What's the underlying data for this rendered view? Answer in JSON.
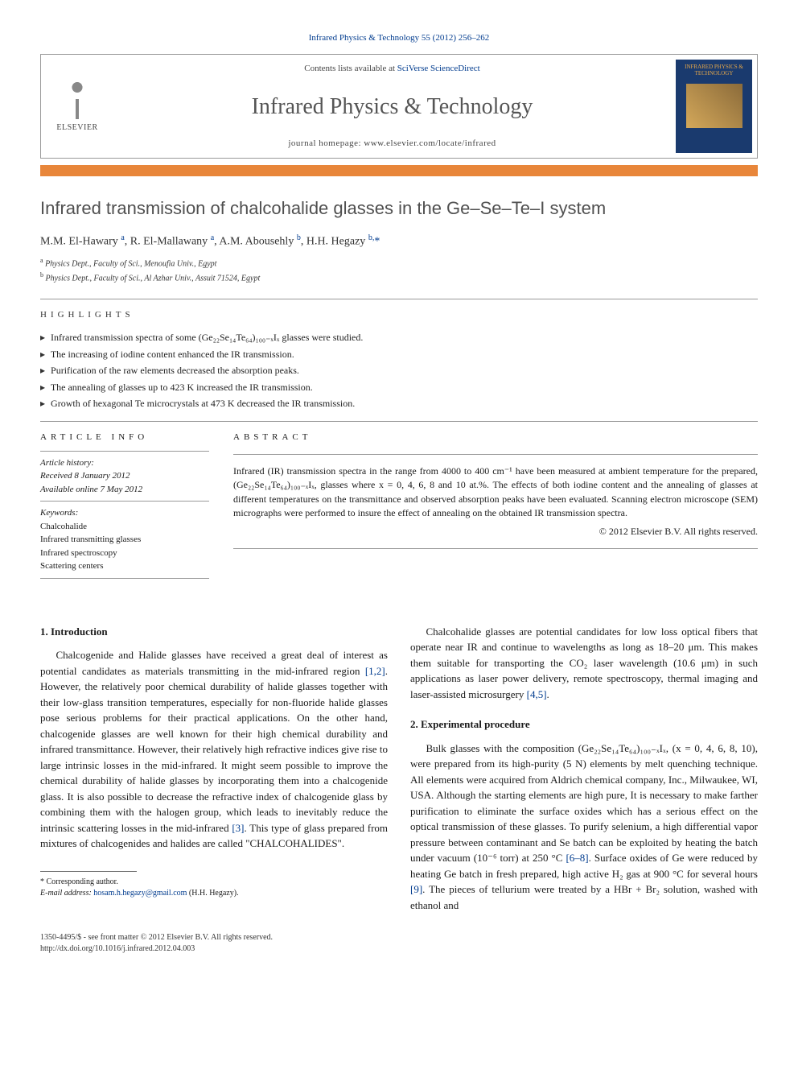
{
  "top_citation": "Infrared Physics & Technology 55 (2012) 256–262",
  "header": {
    "contents_prefix": "Contents lists available at ",
    "contents_link": "SciVerse ScienceDirect",
    "journal_name": "Infrared Physics & Technology",
    "homepage_prefix": "journal homepage: ",
    "homepage_url": "www.elsevier.com/locate/infrared",
    "publisher": "ELSEVIER",
    "cover_title": "INFRARED PHYSICS & TECHNOLOGY"
  },
  "colors": {
    "orange_bar": "#e8863a",
    "link_blue": "#003b8e",
    "title_gray": "#505050",
    "cover_bg": "#1a3a6e",
    "cover_text": "#e8a94a"
  },
  "title": "Infrared transmission of chalcohalide glasses in the Ge–Se–Te–I system",
  "authors_html": "M.M. El-Hawary <sup>a</sup>, R. El-Mallawany <sup>a</sup>, A.M. Abousehly <sup>b</sup>, H.H. Hegazy <sup>b,</sup><span class='ast'>*</span>",
  "affiliations": [
    "a Physics Dept., Faculty of Sci., Menoufia Univ., Egypt",
    "b Physics Dept., Faculty of Sci., Al Azhar Univ., Assuit 71524, Egypt"
  ],
  "highlights_label": "HIGHLIGHTS",
  "highlights": [
    "Infrared transmission spectra of some (Ge₂₂Se₁₄Te₆₄)₁₀₀₋ₓIₓ glasses were studied.",
    "The increasing of iodine content enhanced the IR transmission.",
    "Purification of the raw elements decreased the absorption peaks.",
    "The annealing of glasses up to 423 K increased the IR transmission.",
    "Growth of hexagonal Te microcrystals at 473 K decreased the IR transmission."
  ],
  "article_info": {
    "label": "ARTICLE INFO",
    "history_hdr": "Article history:",
    "received": "Received 8 January 2012",
    "online": "Available online 7 May 2012",
    "keywords_hdr": "Keywords:",
    "keywords": [
      "Chalcohalide",
      "Infrared transmitting glasses",
      "Infrared spectroscopy",
      "Scattering centers"
    ]
  },
  "abstract": {
    "label": "ABSTRACT",
    "text": "Infrared (IR) transmission spectra in the range from 4000 to 400 cm⁻¹ have been measured at ambient temperature for the prepared, (Ge₂₂Se₁₄Te₆₄)₁₀₀₋ₓIₓ, glasses where x = 0, 4, 6, 8 and 10 at.%. The effects of both iodine content and the annealing of glasses at different temperatures on the transmittance and observed absorption peaks have been evaluated. Scanning electron microscope (SEM) micrographs were performed to insure the effect of annealing on the obtained IR transmission spectra.",
    "copyright": "© 2012 Elsevier B.V. All rights reserved."
  },
  "body": {
    "intro_heading": "1. Introduction",
    "intro_p1": "Chalcogenide and Halide glasses have received a great deal of interest as potential candidates as materials transmitting in the mid-infrared region [1,2]. However, the relatively poor chemical durability of halide glasses together with their low-glass transition temperatures, especially for non-fluoride halide glasses pose serious problems for their practical applications. On the other hand, chalcogenide glasses are well known for their high chemical durability and infrared transmittance. However, their relatively high refractive indices give rise to large intrinsic losses in the mid-infrared. It might seem possible to improve the chemical durability of halide glasses by incorporating them into a chalcogenide glass. It is also possible to decrease the refractive index of chalcogenide glass by combining them with the halogen group, which leads to inevitably reduce the intrinsic scattering losses in the mid-infrared [3]. This type of glass prepared from mixtures of chalcogenides and halides are called \"CHALCOHALIDES\".",
    "intro_p2": "Chalcohalide glasses are potential candidates for low loss optical fibers that operate near IR and continue to wavelengths as long as 18–20 μm. This makes them suitable for transporting the CO₂ laser wavelength (10.6 μm) in such applications as laser power delivery, remote spectroscopy, thermal imaging and laser-assisted microsurgery [4,5].",
    "exp_heading": "2. Experimental procedure",
    "exp_p1": "Bulk glasses with the composition (Ge₂₂Se₁₄Te₆₄)₁₀₀₋ₓIₓ, (x = 0, 4, 6, 8, 10), were prepared from its high-purity (5 N) elements by melt quenching technique. All elements were acquired from Aldrich chemical company, Inc., Milwaukee, WI, USA. Although the starting elements are high pure, It is necessary to make farther purification to eliminate the surface oxides which has a serious effect on the optical transmission of these glasses. To purify selenium, a high differential vapor pressure between contaminant and Se batch can be exploited by heating the batch under vacuum (10⁻⁶ torr) at 250 °C [6–8]. Surface oxides of Ge were reduced by heating Ge batch in fresh prepared, high active H₂ gas at 900 °C for several hours [9]. The pieces of tellurium were treated by a HBr + Br₂ solution, washed with ethanol and"
  },
  "footnote": {
    "corr": "* Corresponding author.",
    "email_label": "E-mail address: ",
    "email": "hosam.h.hegazy@gmail.com",
    "email_suffix": " (H.H. Hegazy)."
  },
  "footer": {
    "left1": "1350-4495/$ - see front matter © 2012 Elsevier B.V. All rights reserved.",
    "left2": "http://dx.doi.org/10.1016/j.infrared.2012.04.003"
  }
}
